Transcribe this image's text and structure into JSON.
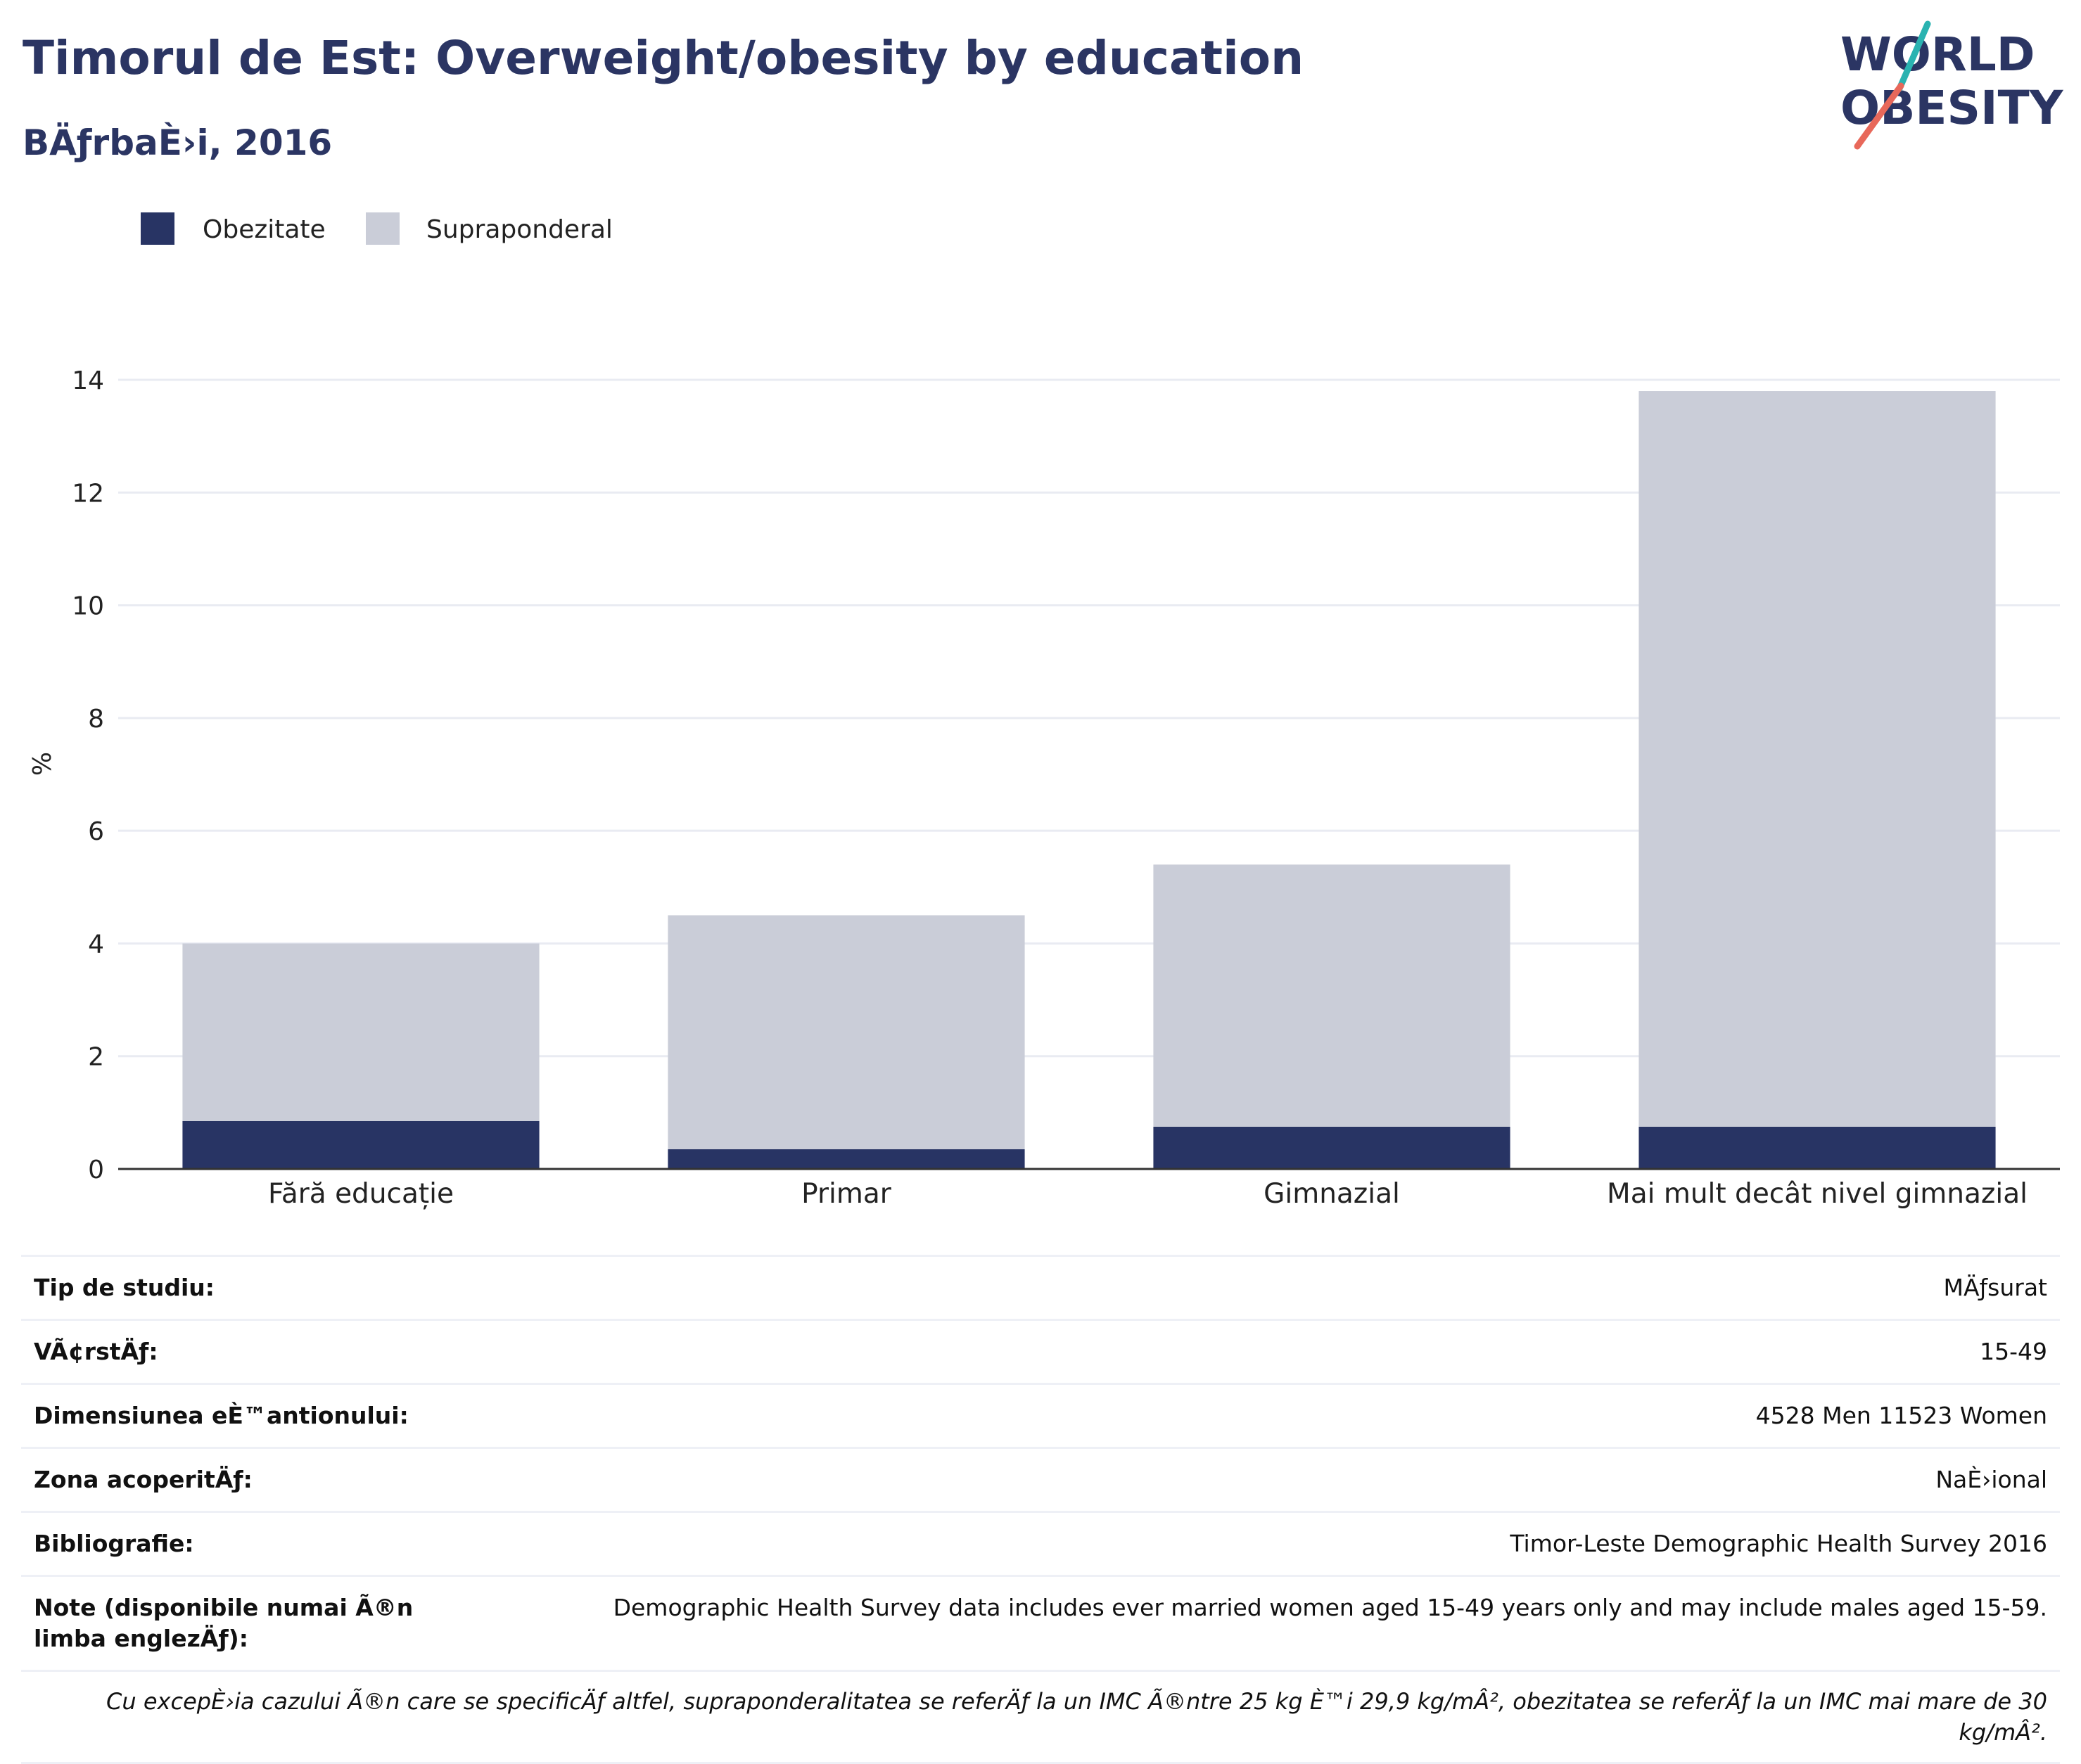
{
  "header": {
    "title": "Timorul de Est: Overweight/obesity by education",
    "subtitle": "BÄƒrbaÈ›i, 2016",
    "logo_line1": "WORLD",
    "logo_line2": "OBESITY"
  },
  "colors": {
    "obesity": "#283464",
    "overweight": "#cacdd8",
    "title": "#2b3563",
    "logo_teal": "#2ab3b1",
    "logo_coral": "#e8685a"
  },
  "chart_data": {
    "type": "bar",
    "stacked": true,
    "ylabel": "%",
    "ylim": [
      0,
      14
    ],
    "yticks": [
      0,
      2,
      4,
      6,
      8,
      10,
      12,
      14
    ],
    "grid": true,
    "legend_position": "top-left",
    "categories": [
      "Fără educație",
      "Primar",
      "Gimnazial",
      "Mai mult decât nivel gimnazial"
    ],
    "series": [
      {
        "name": "Obezitate",
        "values": [
          0.85,
          0.35,
          0.75,
          0.75
        ]
      },
      {
        "name": "Supraponderal",
        "values": [
          3.15,
          4.15,
          4.65,
          13.05
        ]
      }
    ]
  },
  "info": {
    "rows": [
      {
        "key": "Tip de studiu:",
        "value": "MÄƒsurat"
      },
      {
        "key": "VÃ¢rstÄƒ:",
        "value": "15-49"
      },
      {
        "key": "Dimensiunea eÈ™antionului:",
        "value": "4528 Men 11523 Women"
      },
      {
        "key": "Zona acoperitÄƒ:",
        "value": "NaÈ›ional"
      },
      {
        "key": "Bibliografie:",
        "value": "Timor-Leste Demographic Health Survey 2016"
      },
      {
        "key": "Note (disponibile numai Ã®n limba englezÄƒ):",
        "value": "Demographic Health Survey data includes ever married women aged 15-49 years only and may include males aged 15-59."
      }
    ],
    "footnote": "Cu excepÈ›ia cazului Ã®n care se specificÄƒ altfel, supraponderalitatea se referÄƒ la un IMC Ã®ntre 25 kg È™i 29,9 kg/mÂ², obezitatea se referÄƒ la un IMC mai mare de 30 kg/mÂ²."
  }
}
